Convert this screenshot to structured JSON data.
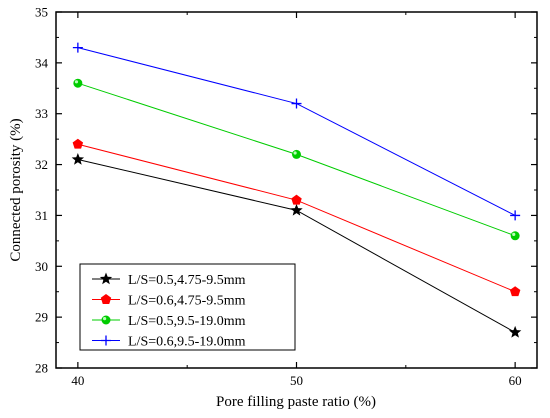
{
  "chart_data": {
    "type": "line",
    "title": "",
    "xlabel": "Pore filling paste ratio (%)",
    "ylabel": "Connected porosity (%)",
    "x": [
      40,
      50,
      60
    ],
    "xlim": [
      39,
      61
    ],
    "ylim": [
      28,
      35
    ],
    "xticks": [
      40,
      50,
      60
    ],
    "yticks": [
      28,
      29,
      30,
      31,
      32,
      33,
      34,
      35
    ],
    "grid": false,
    "legend_position": "bottom-left",
    "series": [
      {
        "name": "L/S=0.5,4.75-9.5mm",
        "values": [
          32.1,
          31.1,
          28.7
        ],
        "color": "#000000",
        "marker": "star"
      },
      {
        "name": "L/S=0.6,4.75-9.5mm",
        "values": [
          32.4,
          31.3,
          29.5
        ],
        "color": "#ff0000",
        "marker": "pentagon"
      },
      {
        "name": "L/S=0.5,9.5-19.0mm",
        "values": [
          33.6,
          32.2,
          30.6
        ],
        "color": "#00cc00",
        "marker": "circle"
      },
      {
        "name": "L/S=0.6,9.5-19.0mm",
        "values": [
          34.3,
          33.2,
          31.0
        ],
        "color": "#0000ff",
        "marker": "plus"
      }
    ]
  }
}
